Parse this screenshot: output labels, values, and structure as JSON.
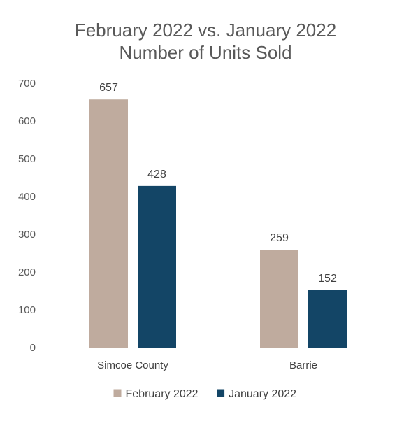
{
  "chart_data": {
    "type": "bar",
    "title": "February 2022 vs. January 2022",
    "subtitle": "Number of Units Sold",
    "xlabel": "",
    "ylabel": "",
    "categories": [
      "Simcoe County",
      "Barrie"
    ],
    "series": [
      {
        "name": "February 2022",
        "values": [
          657,
          259
        ],
        "color": "#bfab9e"
      },
      {
        "name": "January 2022",
        "values": [
          428,
          152
        ],
        "color": "#134566"
      }
    ],
    "ylim": [
      0,
      700
    ],
    "yticks": [
      0,
      100,
      200,
      300,
      400,
      500,
      600,
      700
    ],
    "grid": false,
    "legend": "bottom",
    "data_labels": true
  }
}
